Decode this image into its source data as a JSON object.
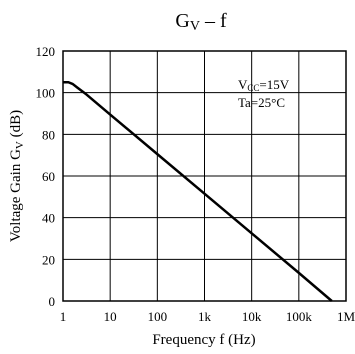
{
  "chart_data": {
    "type": "line",
    "title": "Gv – f",
    "title_main": "G",
    "title_sub": "V",
    "title_rest": " – f",
    "xlabel": "Frequency  f (Hz)",
    "ylabel_main": "Voltage Gain  G",
    "ylabel_sub": "V",
    "ylabel_rest": " (dB)",
    "x_scale": "log",
    "xlim": [
      1,
      1000000
    ],
    "ylim": [
      0,
      120
    ],
    "grid": true,
    "x_ticks": [
      {
        "value": 1,
        "label": "1"
      },
      {
        "value": 10,
        "label": "10"
      },
      {
        "value": 100,
        "label": "100"
      },
      {
        "value": 1000,
        "label": "1k"
      },
      {
        "value": 10000,
        "label": "10k"
      },
      {
        "value": 100000,
        "label": "100k"
      },
      {
        "value": 1000000,
        "label": "1M"
      }
    ],
    "y_ticks": [
      {
        "value": 0,
        "label": "0"
      },
      {
        "value": 20,
        "label": "20"
      },
      {
        "value": 40,
        "label": "40"
      },
      {
        "value": 60,
        "label": "60"
      },
      {
        "value": 80,
        "label": "80"
      },
      {
        "value": 100,
        "label": "100"
      },
      {
        "value": 120,
        "label": "120"
      }
    ],
    "annotation": {
      "vcc_main": "V",
      "vcc_sub": "CC",
      "vcc_rest": "=15V",
      "ta": "Ta=25°C"
    },
    "series": [
      {
        "points": [
          {
            "x": 1,
            "y": 105
          },
          {
            "x": 1.3,
            "y": 105
          },
          {
            "x": 1.6,
            "y": 104.2
          },
          {
            "x": 2,
            "y": 102.5
          },
          {
            "x": 3,
            "y": 99.5
          },
          {
            "x": 10,
            "y": 89.5
          },
          {
            "x": 100,
            "y": 70.5
          },
          {
            "x": 1000,
            "y": 51.5
          },
          {
            "x": 10000,
            "y": 32.5
          },
          {
            "x": 100000,
            "y": 13.5
          },
          {
            "x": 500000,
            "y": 0
          }
        ]
      }
    ]
  }
}
